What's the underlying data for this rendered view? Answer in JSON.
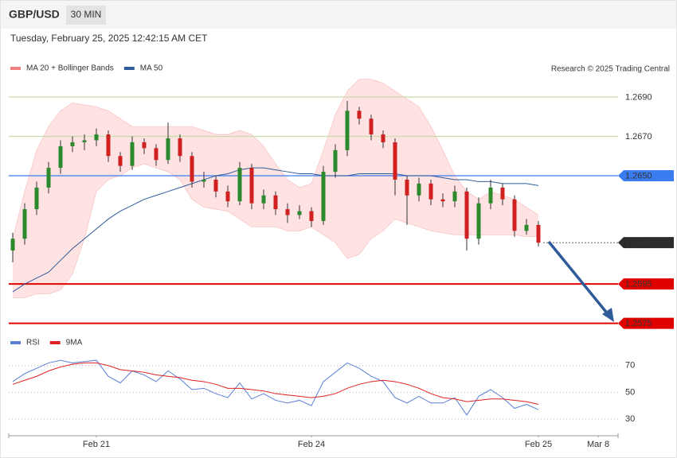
{
  "chart_data": {
    "type": "candlestick",
    "title": "GBP/USD",
    "interval": "30 MIN",
    "timestamp": "Tuesday, February 25, 2025 12:42:15 AM CET",
    "credit": "Research © 2025 Trading Central",
    "up_color": "#2b8a2b",
    "down_color": "#d02020",
    "candles": [
      [
        1.2612,
        1.2621,
        1.2606,
        1.2618
      ],
      [
        1.2618,
        1.2636,
        1.2615,
        1.2633
      ],
      [
        1.2633,
        1.2647,
        1.263,
        1.2644
      ],
      [
        1.2644,
        1.2657,
        1.2641,
        1.2654
      ],
      [
        1.2654,
        1.2668,
        1.2651,
        1.2665
      ],
      [
        1.2665,
        1.267,
        1.2662,
        1.2667
      ],
      [
        1.2667,
        1.2671,
        1.2663,
        1.2668
      ],
      [
        1.2668,
        1.2674,
        1.2665,
        1.2671
      ],
      [
        1.2671,
        1.2673,
        1.2657,
        1.266
      ],
      [
        1.266,
        1.2662,
        1.2652,
        1.2655
      ],
      [
        1.2655,
        1.267,
        1.2653,
        1.2667
      ],
      [
        1.2667,
        1.2669,
        1.2661,
        1.2664
      ],
      [
        1.2664,
        1.2666,
        1.2655,
        1.2658
      ],
      [
        1.2658,
        1.2677,
        1.2656,
        1.2669
      ],
      [
        1.2669,
        1.2671,
        1.2657,
        1.266
      ],
      [
        1.266,
        1.2662,
        1.2644,
        1.2647
      ],
      [
        1.2647,
        1.2652,
        1.2644,
        1.2648
      ],
      [
        1.2648,
        1.265,
        1.2639,
        1.2642
      ],
      [
        1.2642,
        1.2645,
        1.2634,
        1.2637
      ],
      [
        1.2637,
        1.2657,
        1.2635,
        1.2654
      ],
      [
        1.2654,
        1.2656,
        1.2633,
        1.2636
      ],
      [
        1.2636,
        1.2643,
        1.2633,
        1.264
      ],
      [
        1.264,
        1.2642,
        1.263,
        1.2633
      ],
      [
        1.2633,
        1.2636,
        1.2626,
        1.263
      ],
      [
        1.263,
        1.2635,
        1.2628,
        1.2632
      ],
      [
        1.2632,
        1.2634,
        1.2624,
        1.2627
      ],
      [
        1.2627,
        1.2655,
        1.2625,
        1.2652
      ],
      [
        1.2652,
        1.2666,
        1.2649,
        1.2663
      ],
      [
        1.2663,
        1.2688,
        1.266,
        1.2683
      ],
      [
        1.2683,
        1.2685,
        1.2676,
        1.2679
      ],
      [
        1.2679,
        1.2681,
        1.2668,
        1.2671
      ],
      [
        1.2671,
        1.2673,
        1.2664,
        1.2667
      ],
      [
        1.2667,
        1.2669,
        1.264,
        1.2648
      ],
      [
        1.2648,
        1.265,
        1.2625,
        1.264
      ],
      [
        1.264,
        1.2649,
        1.2637,
        1.2646
      ],
      [
        1.2646,
        1.2648,
        1.2635,
        1.2638
      ],
      [
        1.2638,
        1.2641,
        1.2634,
        1.2637
      ],
      [
        1.2637,
        1.2645,
        1.2634,
        1.2642
      ],
      [
        1.2642,
        1.2644,
        1.2612,
        1.2618
      ],
      [
        1.2618,
        1.2639,
        1.2615,
        1.2636
      ],
      [
        1.2636,
        1.2648,
        1.2633,
        1.2644
      ],
      [
        1.2644,
        1.2646,
        1.2635,
        1.2638
      ],
      [
        1.2638,
        1.264,
        1.2619,
        1.2622
      ],
      [
        1.2622,
        1.2628,
        1.262,
        1.2625
      ],
      [
        1.2625,
        1.2627,
        1.2614,
        1.2616
      ]
    ],
    "series": [
      {
        "name": "MA 20 + Bollinger Bands",
        "color": "#f08080",
        "fill": "#ffe3e3",
        "upper": [
          1.2618,
          1.2642,
          1.2663,
          1.2675,
          1.2683,
          1.2687,
          1.2686,
          1.2685,
          1.2683,
          1.2679,
          1.2675,
          1.2675,
          1.2675,
          1.2675,
          1.2675,
          1.2675,
          1.2673,
          1.2671,
          1.2671,
          1.2673,
          1.2671,
          1.2665,
          1.2656,
          1.2648,
          1.2644,
          1.2646,
          1.2663,
          1.2681,
          1.2693,
          1.2699,
          1.2699,
          1.2697,
          1.2693,
          1.2689,
          1.2685,
          1.2675,
          1.2663,
          1.265,
          1.2642,
          1.2638,
          1.2642,
          1.264,
          1.2638,
          1.2634,
          1.263
        ],
        "lower": [
          1.2588,
          1.2588,
          1.259,
          1.259,
          1.2592,
          1.26,
          1.2618,
          1.2642,
          1.2648,
          1.265,
          1.2654,
          1.2656,
          1.2654,
          1.2652,
          1.2648,
          1.2638,
          1.2634,
          1.2633,
          1.2632,
          1.2628,
          1.2624,
          1.2624,
          1.2624,
          1.2622,
          1.2622,
          1.2624,
          1.262,
          1.2616,
          1.2608,
          1.261,
          1.2618,
          1.2622,
          1.2628,
          1.2626,
          1.2624,
          1.2622,
          1.2621,
          1.262,
          1.262,
          1.262,
          1.262,
          1.262,
          1.262,
          1.2619,
          1.2619
        ]
      },
      {
        "name": "MA 50",
        "color": "#2f5b9a",
        "values": [
          1.2591,
          1.2595,
          1.2598,
          1.2601,
          1.2607,
          1.2613,
          1.2618,
          1.2623,
          1.2628,
          1.2632,
          1.2635,
          1.2638,
          1.264,
          1.2642,
          1.2644,
          1.2646,
          1.2648,
          1.265,
          1.2651,
          1.2653,
          1.2654,
          1.2654,
          1.2653,
          1.2652,
          1.2651,
          1.2651,
          1.265,
          1.265,
          1.265,
          1.2651,
          1.2651,
          1.2651,
          1.2651,
          1.265,
          1.265,
          1.265,
          1.2649,
          1.2648,
          1.2648,
          1.2647,
          1.2647,
          1.2646,
          1.2646,
          1.2646,
          1.2645
        ]
      }
    ],
    "ylim": [
      1.2573,
      1.27
    ],
    "levels": [
      {
        "value": 1.269,
        "label": "1.2690",
        "color": "#c8dca8",
        "text_color": "#5a9a1a",
        "tag": false
      },
      {
        "value": 1.267,
        "label": "1.2670",
        "color": "#c8dca8",
        "text_color": "#5a9a1a",
        "tag": false
      },
      {
        "value": 1.265,
        "label": "1.2650",
        "color": "#3b7cf0",
        "text_color": "#ffffff",
        "tag": true
      },
      {
        "value": 1.2616,
        "label": "1.2616",
        "color": "#2b2b2b",
        "text_color": "#ffffff",
        "tag": true
      },
      {
        "value": 1.2595,
        "label": "1.2595",
        "color": "#e00000",
        "text_color": "#ffffff",
        "tag": true
      },
      {
        "value": 1.2575,
        "label": "1.2575",
        "color": "#e00000",
        "text_color": "#ffffff",
        "tag": true
      }
    ],
    "xlim": [
      0,
      50
    ],
    "xticks": [
      {
        "value": 7,
        "label": "Feb 21"
      },
      {
        "value": 25,
        "label": "Feb 24"
      },
      {
        "value": 44,
        "label": "Feb 25"
      },
      {
        "value": 49,
        "label": "Mar 8"
      }
    ],
    "rsi": {
      "ylim": [
        20,
        80
      ],
      "yticks": [
        70,
        50,
        30
      ],
      "series": [
        {
          "name": "RSI",
          "color": "#5b7fd6",
          "values": [
            58,
            64,
            68,
            72,
            74,
            72,
            73,
            74,
            62,
            57,
            66,
            63,
            58,
            66,
            60,
            52,
            53,
            49,
            46,
            57,
            45,
            49,
            44,
            42,
            44,
            40,
            58,
            65,
            72,
            68,
            62,
            58,
            46,
            42,
            47,
            42,
            42,
            46,
            33,
            47,
            52,
            46,
            38,
            41,
            37
          ]
        },
        {
          "name": "9MA",
          "color": "#e02020",
          "values": [
            56,
            59,
            62,
            66,
            69,
            71,
            72,
            72,
            70,
            67,
            66,
            65,
            63,
            62,
            61,
            59,
            58,
            56,
            53,
            53,
            52,
            51,
            49,
            48,
            47,
            46,
            47,
            49,
            53,
            56,
            58,
            59,
            58,
            56,
            53,
            49,
            46,
            45,
            43,
            44,
            45,
            45,
            44,
            43,
            41
          ]
        }
      ]
    }
  }
}
